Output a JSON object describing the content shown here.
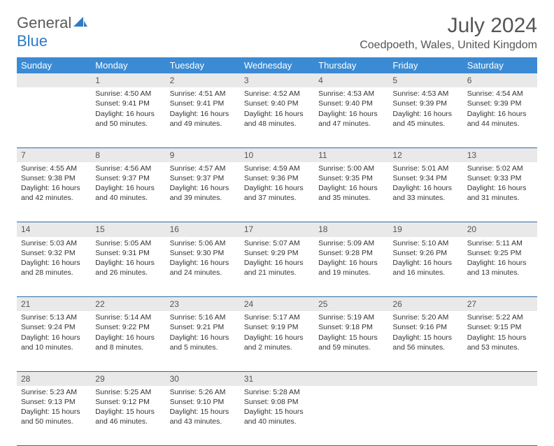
{
  "brand": {
    "part1": "General",
    "part2": "Blue"
  },
  "title": "July 2024",
  "location": "Coedpoeth, Wales, United Kingdom",
  "colors": {
    "header_bg": "#3b8bd4",
    "daynum_bg": "#e9e9e9",
    "rule": "#2c6aa8",
    "text": "#333333",
    "title_text": "#555555"
  },
  "dow": [
    "Sunday",
    "Monday",
    "Tuesday",
    "Wednesday",
    "Thursday",
    "Friday",
    "Saturday"
  ],
  "weeks": [
    {
      "nums": [
        "",
        "1",
        "2",
        "3",
        "4",
        "5",
        "6"
      ],
      "cells": [
        null,
        {
          "sr": "Sunrise: 4:50 AM",
          "ss": "Sunset: 9:41 PM",
          "d1": "Daylight: 16 hours",
          "d2": "and 50 minutes."
        },
        {
          "sr": "Sunrise: 4:51 AM",
          "ss": "Sunset: 9:41 PM",
          "d1": "Daylight: 16 hours",
          "d2": "and 49 minutes."
        },
        {
          "sr": "Sunrise: 4:52 AM",
          "ss": "Sunset: 9:40 PM",
          "d1": "Daylight: 16 hours",
          "d2": "and 48 minutes."
        },
        {
          "sr": "Sunrise: 4:53 AM",
          "ss": "Sunset: 9:40 PM",
          "d1": "Daylight: 16 hours",
          "d2": "and 47 minutes."
        },
        {
          "sr": "Sunrise: 4:53 AM",
          "ss": "Sunset: 9:39 PM",
          "d1": "Daylight: 16 hours",
          "d2": "and 45 minutes."
        },
        {
          "sr": "Sunrise: 4:54 AM",
          "ss": "Sunset: 9:39 PM",
          "d1": "Daylight: 16 hours",
          "d2": "and 44 minutes."
        }
      ]
    },
    {
      "nums": [
        "7",
        "8",
        "9",
        "10",
        "11",
        "12",
        "13"
      ],
      "cells": [
        {
          "sr": "Sunrise: 4:55 AM",
          "ss": "Sunset: 9:38 PM",
          "d1": "Daylight: 16 hours",
          "d2": "and 42 minutes."
        },
        {
          "sr": "Sunrise: 4:56 AM",
          "ss": "Sunset: 9:37 PM",
          "d1": "Daylight: 16 hours",
          "d2": "and 40 minutes."
        },
        {
          "sr": "Sunrise: 4:57 AM",
          "ss": "Sunset: 9:37 PM",
          "d1": "Daylight: 16 hours",
          "d2": "and 39 minutes."
        },
        {
          "sr": "Sunrise: 4:59 AM",
          "ss": "Sunset: 9:36 PM",
          "d1": "Daylight: 16 hours",
          "d2": "and 37 minutes."
        },
        {
          "sr": "Sunrise: 5:00 AM",
          "ss": "Sunset: 9:35 PM",
          "d1": "Daylight: 16 hours",
          "d2": "and 35 minutes."
        },
        {
          "sr": "Sunrise: 5:01 AM",
          "ss": "Sunset: 9:34 PM",
          "d1": "Daylight: 16 hours",
          "d2": "and 33 minutes."
        },
        {
          "sr": "Sunrise: 5:02 AM",
          "ss": "Sunset: 9:33 PM",
          "d1": "Daylight: 16 hours",
          "d2": "and 31 minutes."
        }
      ]
    },
    {
      "nums": [
        "14",
        "15",
        "16",
        "17",
        "18",
        "19",
        "20"
      ],
      "cells": [
        {
          "sr": "Sunrise: 5:03 AM",
          "ss": "Sunset: 9:32 PM",
          "d1": "Daylight: 16 hours",
          "d2": "and 28 minutes."
        },
        {
          "sr": "Sunrise: 5:05 AM",
          "ss": "Sunset: 9:31 PM",
          "d1": "Daylight: 16 hours",
          "d2": "and 26 minutes."
        },
        {
          "sr": "Sunrise: 5:06 AM",
          "ss": "Sunset: 9:30 PM",
          "d1": "Daylight: 16 hours",
          "d2": "and 24 minutes."
        },
        {
          "sr": "Sunrise: 5:07 AM",
          "ss": "Sunset: 9:29 PM",
          "d1": "Daylight: 16 hours",
          "d2": "and 21 minutes."
        },
        {
          "sr": "Sunrise: 5:09 AM",
          "ss": "Sunset: 9:28 PM",
          "d1": "Daylight: 16 hours",
          "d2": "and 19 minutes."
        },
        {
          "sr": "Sunrise: 5:10 AM",
          "ss": "Sunset: 9:26 PM",
          "d1": "Daylight: 16 hours",
          "d2": "and 16 minutes."
        },
        {
          "sr": "Sunrise: 5:11 AM",
          "ss": "Sunset: 9:25 PM",
          "d1": "Daylight: 16 hours",
          "d2": "and 13 minutes."
        }
      ]
    },
    {
      "nums": [
        "21",
        "22",
        "23",
        "24",
        "25",
        "26",
        "27"
      ],
      "cells": [
        {
          "sr": "Sunrise: 5:13 AM",
          "ss": "Sunset: 9:24 PM",
          "d1": "Daylight: 16 hours",
          "d2": "and 10 minutes."
        },
        {
          "sr": "Sunrise: 5:14 AM",
          "ss": "Sunset: 9:22 PM",
          "d1": "Daylight: 16 hours",
          "d2": "and 8 minutes."
        },
        {
          "sr": "Sunrise: 5:16 AM",
          "ss": "Sunset: 9:21 PM",
          "d1": "Daylight: 16 hours",
          "d2": "and 5 minutes."
        },
        {
          "sr": "Sunrise: 5:17 AM",
          "ss": "Sunset: 9:19 PM",
          "d1": "Daylight: 16 hours",
          "d2": "and 2 minutes."
        },
        {
          "sr": "Sunrise: 5:19 AM",
          "ss": "Sunset: 9:18 PM",
          "d1": "Daylight: 15 hours",
          "d2": "and 59 minutes."
        },
        {
          "sr": "Sunrise: 5:20 AM",
          "ss": "Sunset: 9:16 PM",
          "d1": "Daylight: 15 hours",
          "d2": "and 56 minutes."
        },
        {
          "sr": "Sunrise: 5:22 AM",
          "ss": "Sunset: 9:15 PM",
          "d1": "Daylight: 15 hours",
          "d2": "and 53 minutes."
        }
      ]
    },
    {
      "nums": [
        "28",
        "29",
        "30",
        "31",
        "",
        "",
        ""
      ],
      "cells": [
        {
          "sr": "Sunrise: 5:23 AM",
          "ss": "Sunset: 9:13 PM",
          "d1": "Daylight: 15 hours",
          "d2": "and 50 minutes."
        },
        {
          "sr": "Sunrise: 5:25 AM",
          "ss": "Sunset: 9:12 PM",
          "d1": "Daylight: 15 hours",
          "d2": "and 46 minutes."
        },
        {
          "sr": "Sunrise: 5:26 AM",
          "ss": "Sunset: 9:10 PM",
          "d1": "Daylight: 15 hours",
          "d2": "and 43 minutes."
        },
        {
          "sr": "Sunrise: 5:28 AM",
          "ss": "Sunset: 9:08 PM",
          "d1": "Daylight: 15 hours",
          "d2": "and 40 minutes."
        },
        null,
        null,
        null
      ]
    }
  ]
}
